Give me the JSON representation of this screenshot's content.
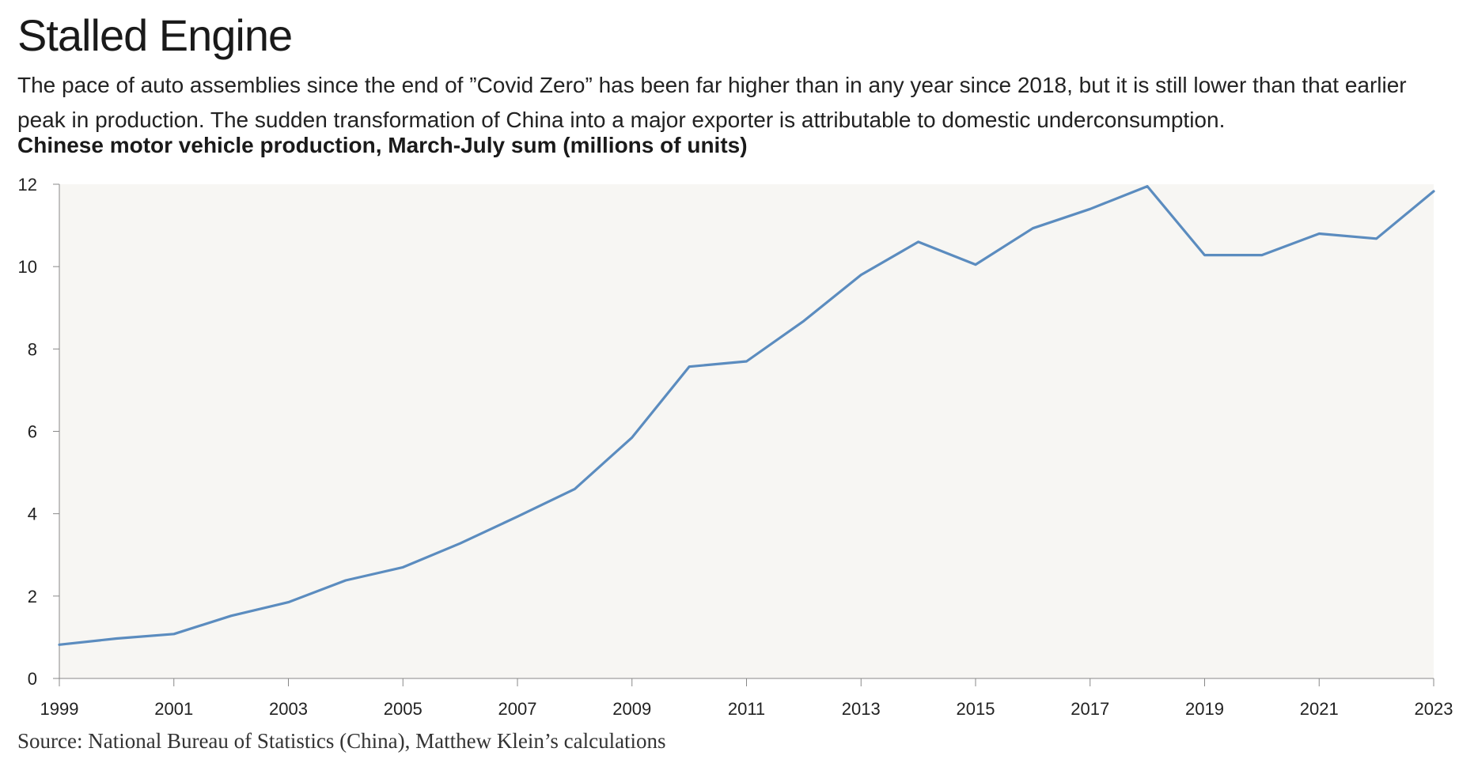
{
  "header": {
    "title": "Stalled Engine",
    "subtitle": "The pace of auto assemblies since the end of ”Covid Zero” has been far higher than in any year since 2018, but it is still lower than that earlier peak in production. The sudden transformation of China into a major exporter is attributable to domestic underconsumption.",
    "chart_heading": "Chinese motor vehicle production, March-July sum (millions of units)"
  },
  "footer": {
    "source": "Source: National Bureau of Statistics (China), Matthew Klein’s calculations"
  },
  "colors": {
    "line": "#5b8cbf",
    "plot_background": "#f7f6f3",
    "axis": "#888888"
  },
  "chart_data": {
    "type": "line",
    "title": "Chinese motor vehicle production, March-July sum (millions of units)",
    "xlabel": "",
    "ylabel": "",
    "x": [
      1999,
      2000,
      2001,
      2002,
      2003,
      2004,
      2005,
      2006,
      2007,
      2008,
      2009,
      2010,
      2011,
      2012,
      2013,
      2014,
      2015,
      2016,
      2017,
      2018,
      2019,
      2020,
      2021,
      2022,
      2023
    ],
    "series": [
      {
        "values": [
          0.82,
          0.97,
          1.08,
          1.52,
          1.85,
          2.38,
          2.7,
          3.28,
          3.93,
          4.6,
          5.85,
          7.57,
          7.7,
          8.68,
          9.8,
          10.6,
          10.05,
          10.93,
          11.4,
          11.95,
          10.28,
          10.28,
          10.8,
          10.68,
          11.83
        ]
      }
    ],
    "xlim": [
      1999,
      2023
    ],
    "ylim": [
      0,
      12
    ],
    "x_ticks": [
      1999,
      2001,
      2003,
      2005,
      2007,
      2009,
      2011,
      2013,
      2015,
      2017,
      2019,
      2021,
      2023
    ],
    "y_ticks": [
      0,
      2,
      4,
      6,
      8,
      10,
      12
    ],
    "grid": false,
    "legend": "none"
  }
}
